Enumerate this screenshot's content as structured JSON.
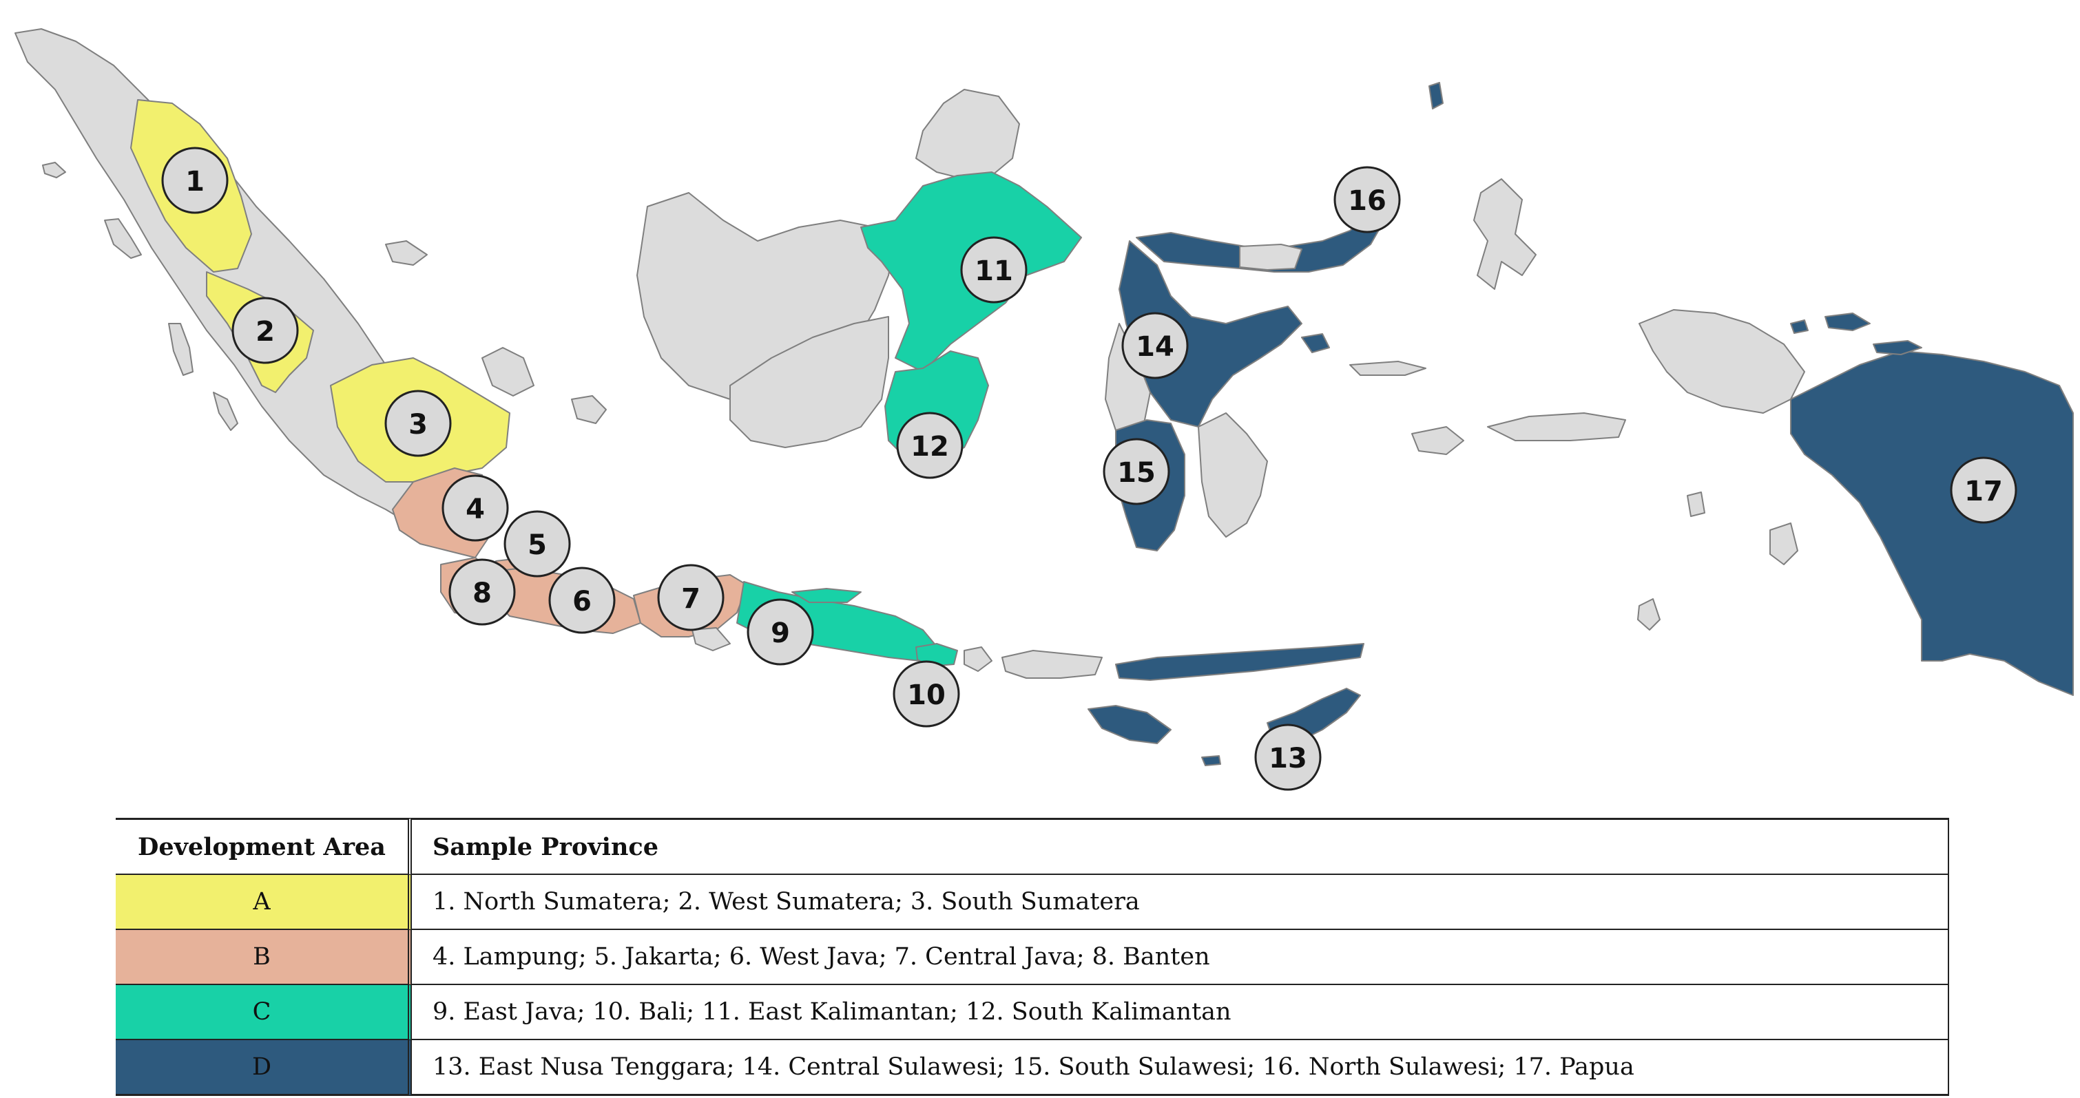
{
  "colors": {
    "area_A": "#f2f06e",
    "area_B": "#e6b29a",
    "area_C": "#18d1a7",
    "area_D": "#2e5a7e",
    "other": "#dcdcdc"
  },
  "provinces": [
    {
      "num": "1",
      "area": "A"
    },
    {
      "num": "2",
      "area": "A"
    },
    {
      "num": "3",
      "area": "A"
    },
    {
      "num": "4",
      "area": "B"
    },
    {
      "num": "5",
      "area": "B"
    },
    {
      "num": "6",
      "area": "B"
    },
    {
      "num": "7",
      "area": "B"
    },
    {
      "num": "8",
      "area": "B"
    },
    {
      "num": "9",
      "area": "C"
    },
    {
      "num": "10",
      "area": "C"
    },
    {
      "num": "11",
      "area": "C"
    },
    {
      "num": "12",
      "area": "C"
    },
    {
      "num": "13",
      "area": "D"
    },
    {
      "num": "14",
      "area": "D"
    },
    {
      "num": "15",
      "area": "D"
    },
    {
      "num": "16",
      "area": "D"
    },
    {
      "num": "17",
      "area": "D"
    }
  ],
  "legend": {
    "header_area": "Development Area",
    "header_province": "Sample Province",
    "rows": [
      {
        "area": "A",
        "provinces": "1. North Sumatera; 2. West Sumatera; 3. South Sumatera"
      },
      {
        "area": "B",
        "provinces": "4. Lampung; 5. Jakarta; 6. West Java; 7. Central Java; 8. Banten"
      },
      {
        "area": "C",
        "provinces": "9. East Java; 10. Bali; 11. East Kalimantan; 12. South Kalimantan"
      },
      {
        "area": "D",
        "provinces": "13. East Nusa Tenggara; 14. Central Sulawesi; 15. South Sulawesi; 16. North Sulawesi; 17. Papua"
      }
    ]
  }
}
